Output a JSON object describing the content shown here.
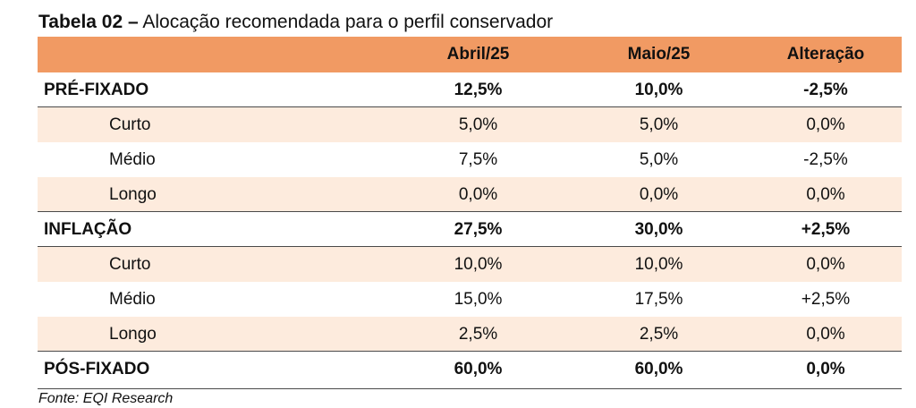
{
  "title": {
    "bold": "Tabela 02 –",
    "text": " Alocação recomendada para o perfil conservador"
  },
  "header": {
    "col1": "",
    "col2": "Abril/25",
    "col3": "Maio/25",
    "col4": "Alteração"
  },
  "rows": [
    {
      "label": "PRÉ-FIXADO",
      "a": "12,5%",
      "b": "10,0%",
      "c": "-2,5%"
    },
    {
      "label": "Curto",
      "a": "5,0%",
      "b": "5,0%",
      "c": "0,0%"
    },
    {
      "label": "Médio",
      "a": "7,5%",
      "b": "5,0%",
      "c": "-2,5%"
    },
    {
      "label": "Longo",
      "a": "0,0%",
      "b": "0,0%",
      "c": "0,0%"
    },
    {
      "label": "INFLAÇÃO",
      "a": "27,5%",
      "b": "30,0%",
      "c": "+2,5%"
    },
    {
      "label": "Curto",
      "a": "10,0%",
      "b": "10,0%",
      "c": "0,0%"
    },
    {
      "label": "Médio",
      "a": "15,0%",
      "b": "17,5%",
      "c": "+2,5%"
    },
    {
      "label": "Longo",
      "a": "2,5%",
      "b": "2,5%",
      "c": "0,0%"
    },
    {
      "label": "PÓS-FIXADO",
      "a": "60,0%",
      "b": "60,0%",
      "c": "0,0%"
    }
  ],
  "source": "Fonte: EQI Research",
  "colors": {
    "header_bg": "#f19a63",
    "shade_bg": "#fdebdd"
  }
}
